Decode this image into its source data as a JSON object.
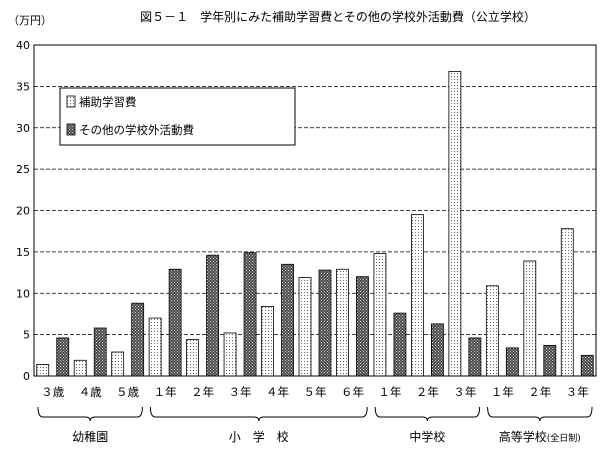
{
  "chart_data": {
    "type": "bar",
    "title": "図５－１　学年別にみた補助学習費とその他の学校外活動費（公立学校）",
    "ylabel": "（万円）",
    "ylim": [
      0,
      40
    ],
    "yticks": [
      0,
      5,
      10,
      15,
      20,
      25,
      30,
      35,
      40
    ],
    "grid": true,
    "legend_position": "top-left",
    "categories": [
      "３歳",
      "４歳",
      "５歳",
      "１年",
      "２年",
      "３年",
      "４年",
      "５年",
      "６年",
      "１年",
      "２年",
      "３年",
      "１年",
      "２年",
      "３年"
    ],
    "groups": [
      {
        "label": "幼稚園",
        "start": 0,
        "end": 2
      },
      {
        "label": "小　学　校",
        "start": 3,
        "end": 8
      },
      {
        "label": "中学校",
        "start": 9,
        "end": 11
      },
      {
        "label": "高等学校",
        "sublabel": "(全日制)",
        "start": 12,
        "end": 14
      }
    ],
    "series": [
      {
        "name": "補助学習費",
        "pattern": "light-dotted",
        "values": [
          1.4,
          1.9,
          2.9,
          7.0,
          4.4,
          5.2,
          8.4,
          11.9,
          12.9,
          14.8,
          19.5,
          36.8,
          10.9,
          13.9,
          17.8
        ]
      },
      {
        "name": "その他の学校外活動費",
        "pattern": "dark-dotted",
        "values": [
          4.6,
          5.8,
          8.8,
          12.9,
          14.6,
          14.9,
          13.5,
          12.8,
          12.0,
          7.6,
          6.3,
          4.6,
          3.4,
          3.7,
          2.5
        ]
      }
    ]
  }
}
